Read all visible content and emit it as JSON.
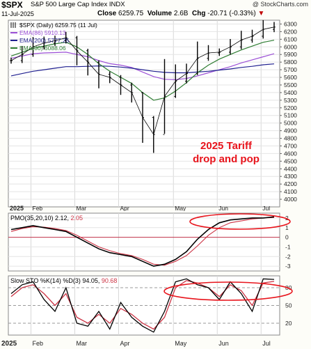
{
  "header": {
    "symbol": "$SPX",
    "name": "S&P 500 Large Cap Index",
    "exchange": "INDX",
    "watermark": "@ StockCharts.com",
    "date": "11-Jul-2025",
    "close_label": "Close",
    "close_value": "6259.75",
    "volume_label": "Volume",
    "volume_value": "2.6B",
    "chg_label": "Chg",
    "chg_value": "-20.71 (-0.33%)",
    "chg_arrow": "▼"
  },
  "colors": {
    "price": "#000000",
    "ema86": "#9b4fd6",
    "ema200": "#1f1f8f",
    "ema30": "#2e7d32",
    "pmo": "#000000",
    "pmo_signal": "#cc3344",
    "sto_k": "#000000",
    "sto_d": "#cc3344",
    "annotation": "#e8141c",
    "panel_bg": "#ffffff",
    "frame_bg": "#fdfdf8"
  },
  "price_panel": {
    "legend": [
      {
        "text": "$SPX (Daily) 6259.75 (11 Jul)",
        "color": "#000000",
        "swatch": "bars"
      },
      {
        "text": "EMA(86) 5910.13",
        "color": "#9b4fd6",
        "swatch": "line"
      },
      {
        "text": "EMA(200) 5777.25",
        "color": "#1f1f8f",
        "swatch": "line"
      },
      {
        "text": "EMA(30) 6088.06",
        "color": "#2e7d32",
        "swatch": "line"
      }
    ],
    "annotation_line1": "2025 Tariff",
    "annotation_line2": "drop and pop"
  },
  "pmo_panel": {
    "label": "PMO(35,20,10)",
    "pmo": "2.12",
    "signal": "2.05"
  },
  "sto_panel": {
    "label": "Slow STO %K(14) %D(3)",
    "k": "94.05",
    "d": "90.68"
  },
  "chart_data": [
    {
      "type": "line",
      "title": "$SPX (Daily)",
      "x": [
        "Jan",
        "Jan",
        "Feb",
        "Feb",
        "Feb",
        "Feb",
        "Mar",
        "Mar",
        "Mar",
        "Mar",
        "Apr",
        "Apr",
        "Apr",
        "Apr",
        "Apr",
        "May",
        "May",
        "May",
        "May",
        "Jun",
        "Jun",
        "Jun",
        "Jun",
        "Jul",
        "Jul"
      ],
      "x_tick_labels": [
        "2025",
        "Feb",
        "Mar",
        "Apr",
        "May",
        "Jun",
        "Jul"
      ],
      "ylim": [
        3900,
        6350
      ],
      "y_ticks": [
        4000,
        4100,
        4200,
        4300,
        4400,
        4500,
        4600,
        4700,
        4800,
        4900,
        5000,
        5100,
        5200,
        5300,
        5400,
        5500,
        5600,
        5700,
        5800,
        5900,
        6000,
        6100,
        6200,
        6300
      ],
      "series": [
        {
          "name": "$SPX (Daily)",
          "values": [
            5820,
            5900,
            6000,
            6050,
            6080,
            6120,
            5950,
            5800,
            5640,
            5600,
            5500,
            5400,
            5074,
            4850,
            5350,
            5550,
            5650,
            5850,
            5920,
            5930,
            6000,
            6090,
            6140,
            6230,
            6260
          ]
        },
        {
          "name": "EMA(86)",
          "values": [
            5850,
            5880,
            5910,
            5920,
            5925,
            5930,
            5900,
            5870,
            5820,
            5780,
            5760,
            5730,
            5670,
            5610,
            5575,
            5570,
            5585,
            5620,
            5660,
            5700,
            5740,
            5790,
            5830,
            5870,
            5910
          ]
        },
        {
          "name": "EMA(200)",
          "values": [
            5620,
            5650,
            5680,
            5700,
            5720,
            5740,
            5740,
            5745,
            5750,
            5745,
            5735,
            5720,
            5700,
            5680,
            5665,
            5660,
            5660,
            5670,
            5680,
            5695,
            5710,
            5730,
            5745,
            5765,
            5777
          ]
        },
        {
          "name": "EMA(30)",
          "values": [
            5880,
            5930,
            5980,
            6010,
            6040,
            6060,
            6000,
            5900,
            5780,
            5680,
            5600,
            5520,
            5400,
            5300,
            5330,
            5420,
            5530,
            5660,
            5760,
            5840,
            5900,
            5960,
            6010,
            6060,
            6088
          ]
        }
      ]
    },
    {
      "type": "line",
      "title": "PMO(35,20,10)",
      "ylim": [
        -3.5,
        2.5
      ],
      "y_ticks": [
        -3,
        -2,
        -1,
        0,
        1,
        2
      ],
      "series": [
        {
          "name": "PMO",
          "values": [
            0.8,
            1.0,
            1.2,
            1.0,
            0.8,
            0.6,
            0.0,
            -0.6,
            -1.2,
            -1.6,
            -1.8,
            -2.0,
            -2.5,
            -3.0,
            -2.8,
            -2.3,
            -1.5,
            -0.2,
            0.8,
            1.5,
            1.8,
            1.9,
            2.0,
            2.0,
            2.12
          ]
        },
        {
          "name": "Signal",
          "values": [
            0.6,
            0.9,
            1.1,
            1.05,
            0.9,
            0.7,
            0.2,
            -0.4,
            -1.0,
            -1.4,
            -1.7,
            -1.9,
            -2.3,
            -2.8,
            -2.9,
            -2.5,
            -1.9,
            -0.9,
            0.2,
            1.0,
            1.5,
            1.7,
            1.9,
            2.0,
            2.05
          ]
        }
      ]
    },
    {
      "type": "line",
      "title": "Slow STO %K(14) %D(3)",
      "ylim": [
        0,
        100
      ],
      "y_ticks": [
        20,
        50,
        80
      ],
      "series": [
        {
          "name": "%K",
          "values": [
            70,
            85,
            90,
            60,
            40,
            80,
            20,
            15,
            40,
            10,
            55,
            30,
            15,
            5,
            40,
            90,
            95,
            85,
            80,
            60,
            90,
            70,
            40,
            95,
            94.05
          ]
        },
        {
          "name": "%D",
          "values": [
            65,
            80,
            85,
            70,
            50,
            70,
            30,
            20,
            35,
            20,
            45,
            35,
            20,
            10,
            30,
            80,
            92,
            88,
            80,
            65,
            85,
            75,
            50,
            88,
            90.68
          ]
        }
      ]
    }
  ]
}
